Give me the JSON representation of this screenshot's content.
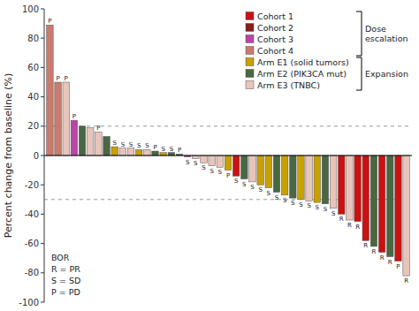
{
  "chart_data": {
    "type": "bar",
    "categories": [
      null,
      null,
      null,
      null,
      null,
      null,
      null,
      null,
      null,
      null,
      null,
      null,
      null,
      null,
      null,
      null,
      null,
      null,
      null,
      null,
      null,
      null,
      null,
      null,
      null,
      null,
      null,
      null,
      null,
      null,
      null,
      null,
      null,
      null,
      null,
      null,
      null,
      null,
      null,
      null,
      null,
      null,
      null,
      null,
      null
    ],
    "values": [
      89,
      50,
      50,
      24,
      20,
      19,
      16,
      13,
      6,
      5,
      5,
      4,
      4,
      3,
      2,
      2,
      1,
      -1,
      -2,
      -5,
      -7,
      -8,
      -10,
      -14,
      -16,
      -18,
      -20,
      -22,
      -25,
      -27,
      -29,
      -30,
      -31,
      -32,
      -33,
      -36,
      -40,
      -44,
      -45,
      -58,
      -62,
      -66,
      -69,
      -72,
      -82
    ],
    "colors": [
      "#C97B6E",
      "#C97B6E",
      "#E8C4BB",
      "#BB44AA",
      "#4A6741",
      "#E8C4BB",
      "#E8C4BB",
      "#4A6741",
      "#C8A000",
      "#E8C4BB",
      "#E8C4BB",
      "#C8A000",
      "#E8C4BB",
      "#4A6741",
      "#C8A000",
      "#4A6741",
      "#4A6741",
      "#BB44AA",
      "#E8C4BB",
      "#E8C4BB",
      "#E8C4BB",
      "#E8C4BB",
      "#C8A000",
      "#CC1111",
      "#4A6741",
      "#E8C4BB",
      "#C8A000",
      "#C8A000",
      "#4A6741",
      "#C8A000",
      "#4A6741",
      "#C8A000",
      "#E8C4BB",
      "#C8A000",
      "#4A6741",
      "#E8C4BB",
      "#CC1111",
      "#E8C4BB",
      "#CC1111",
      "#CC1111",
      "#4A6741",
      "#CC1111",
      "#4A6741",
      "#CC1111",
      "#E8C4BB"
    ],
    "bar_labels": [
      "P",
      "P",
      "P",
      "P",
      null,
      null,
      "P",
      null,
      "S",
      "S",
      "S",
      "S",
      "S",
      "P",
      "S",
      "S",
      "P",
      "S",
      "S",
      "S",
      "S",
      "S",
      "P",
      "S",
      "S",
      "S",
      "S",
      "S",
      "S",
      "S",
      "S",
      "S",
      "S",
      "S",
      "S",
      "S",
      "R",
      "R",
      "R",
      "R",
      "R",
      "R",
      "R",
      "P",
      "R"
    ],
    "ylabel": "Percent change from baseline (%)",
    "ylim": [
      -100,
      100
    ],
    "yticks": [
      -100,
      -80,
      -60,
      -40,
      -20,
      0,
      20,
      40,
      60,
      80,
      100
    ],
    "reference_lines": [
      20,
      -30
    ],
    "annotations": [
      {
        "text": "BOR\nR = PR\nS = SD\nP = PD"
      }
    ],
    "legend": "upper right",
    "legend_entries": [
      {
        "name": "Cohort 1",
        "color": "#CC1111"
      },
      {
        "name": "Cohort 2",
        "color": "#8B1A1A"
      },
      {
        "name": "Cohort 3",
        "color": "#BB44AA"
      },
      {
        "name": "Cohort 4",
        "color": "#C97B6E"
      },
      {
        "name": "Arm E1 (solid tumors)",
        "color": "#C8A000"
      },
      {
        "name": "Arm E2 (PIK3CA mut)",
        "color": "#4A6741"
      },
      {
        "name": "Arm E3 (TNBC)",
        "color": "#E8C4BB"
      }
    ],
    "legend_groups": [
      {
        "label": "Dose\nescalation",
        "members": [
          "Cohort 1",
          "Cohort 2",
          "Cohort 3",
          "Cohort 4"
        ]
      },
      {
        "label": "Expansion",
        "members": [
          "Arm E1 (solid tumors)",
          "Arm E2 (PIK3CA mut)",
          "Arm E3 (TNBC)"
        ]
      }
    ],
    "grid": false
  }
}
